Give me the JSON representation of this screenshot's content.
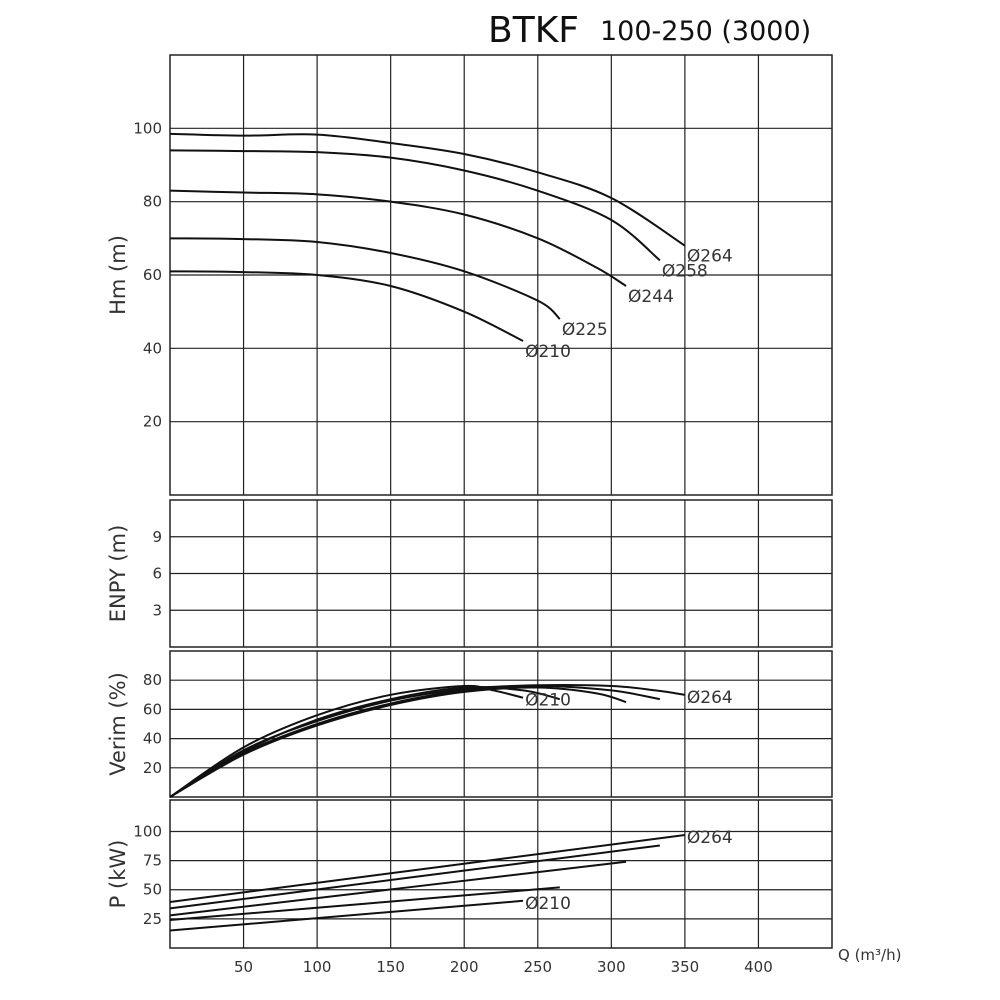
{
  "title": {
    "main": "BTKF",
    "sub": "100-250 (3000)"
  },
  "chart_data": [
    {
      "type": "line",
      "panel": "head",
      "ylabel": "Hm (m)",
      "ylim": [
        0,
        120
      ],
      "xlim": [
        0,
        450
      ],
      "yticks": [
        20,
        40,
        60,
        80,
        100
      ],
      "grid": true,
      "series": [
        {
          "name": "Ø264",
          "x": [
            0,
            50,
            100,
            150,
            200,
            250,
            300,
            350
          ],
          "y": [
            98.5,
            98,
            98.3,
            96,
            93,
            88,
            81,
            68
          ]
        },
        {
          "name": "Ø258",
          "x": [
            0,
            50,
            100,
            150,
            200,
            250,
            300,
            333
          ],
          "y": [
            94,
            93.8,
            93.5,
            92,
            88.5,
            83,
            75,
            64
          ]
        },
        {
          "name": "Ø244",
          "x": [
            0,
            50,
            100,
            150,
            200,
            250,
            290,
            310
          ],
          "y": [
            83,
            82.5,
            82,
            80,
            76.5,
            70,
            62,
            57
          ]
        },
        {
          "name": "Ø225",
          "x": [
            0,
            50,
            100,
            150,
            200,
            250,
            265
          ],
          "y": [
            70,
            69.8,
            69,
            66,
            61,
            53,
            48
          ]
        },
        {
          "name": "Ø210",
          "x": [
            0,
            50,
            100,
            150,
            200,
            240
          ],
          "y": [
            61,
            60.8,
            60,
            57,
            50,
            42
          ]
        }
      ]
    },
    {
      "type": "line",
      "panel": "npsh",
      "ylabel": "ENPY (m)",
      "ylim": [
        0,
        12
      ],
      "xlim": [
        0,
        450
      ],
      "yticks": [
        3,
        6,
        9
      ],
      "grid": true,
      "series": []
    },
    {
      "type": "line",
      "panel": "efficiency",
      "ylabel": "Verim (%)",
      "ylim": [
        0,
        100
      ],
      "xlim": [
        0,
        450
      ],
      "yticks": [
        20,
        40,
        60,
        80
      ],
      "grid": true,
      "series": [
        {
          "name": "Ø264",
          "x": [
            0,
            50,
            100,
            150,
            200,
            250,
            300,
            330,
            350
          ],
          "y": [
            0,
            32,
            52,
            66,
            74,
            76.5,
            76,
            73,
            70
          ]
        },
        {
          "name": "Ø258",
          "x": [
            0,
            50,
            100,
            150,
            200,
            250,
            300,
            333
          ],
          "y": [
            0,
            30,
            50,
            64,
            73,
            76,
            73,
            67
          ]
        },
        {
          "name": "Ø244",
          "x": [
            0,
            50,
            100,
            150,
            200,
            250,
            290,
            310
          ],
          "y": [
            0,
            29,
            49,
            63,
            72,
            75,
            71,
            65
          ]
        },
        {
          "name": "Ø225",
          "x": [
            0,
            50,
            100,
            150,
            200,
            240,
            265
          ],
          "y": [
            0,
            31,
            53,
            67,
            75,
            73,
            67
          ]
        },
        {
          "name": "Ø210",
          "x": [
            0,
            50,
            100,
            150,
            200,
            220,
            240
          ],
          "y": [
            0,
            34,
            56,
            70,
            76,
            73,
            68
          ]
        }
      ]
    },
    {
      "type": "line",
      "panel": "power",
      "ylabel": "P (kW)",
      "ylim": [
        0,
        127
      ],
      "xlim": [
        0,
        450
      ],
      "xlabel": "Q (m³/h)",
      "xticks": [
        50,
        100,
        150,
        200,
        250,
        300,
        350,
        400
      ],
      "yticks": [
        25,
        50,
        75,
        100
      ],
      "grid": true,
      "series": [
        {
          "name": "Ø264",
          "x": [
            0,
            350
          ],
          "y": [
            39.5,
            97
          ]
        },
        {
          "name": "Ø258",
          "x": [
            0,
            333
          ],
          "y": [
            34,
            88
          ]
        },
        {
          "name": "Ø244",
          "x": [
            0,
            310
          ],
          "y": [
            28,
            74
          ]
        },
        {
          "name": "Ø225",
          "x": [
            0,
            265
          ],
          "y": [
            24,
            52
          ]
        },
        {
          "name": "Ø210",
          "x": [
            0,
            240
          ],
          "y": [
            15,
            40.5
          ]
        }
      ]
    }
  ],
  "labels": {
    "head": [
      "Ø264",
      "Ø258",
      "Ø244",
      "Ø225",
      "Ø210"
    ],
    "efficiency": [
      "Ø264",
      "Ø210"
    ],
    "power": [
      "Ø264",
      "Ø210"
    ]
  }
}
